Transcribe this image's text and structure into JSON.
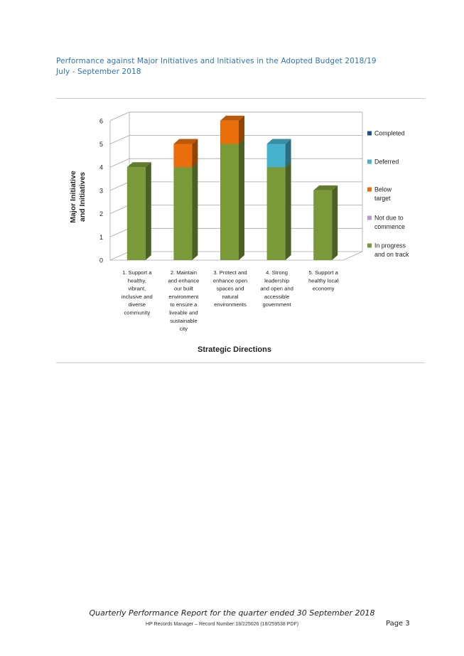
{
  "header": {
    "line1": "Performance against Major Initiatives and Initiatives in the Adopted Budget 2018/19",
    "line2": "July - September 2018"
  },
  "chart_data": {
    "type": "bar",
    "stacked": true,
    "three_d": true,
    "categories": [
      [
        "1. Support a",
        "healthy,",
        "vibrant,",
        "inclusive and",
        "diverse",
        "community"
      ],
      [
        "2. Maintain",
        "and enhance",
        "our built",
        "environment",
        "to ensure a",
        "liveable and",
        "sustainable",
        "city"
      ],
      [
        "3. Protect and",
        "enhance open",
        "spaces and",
        "natural",
        "environments"
      ],
      [
        "4. Strong",
        "leadership",
        "and open and",
        "accessible",
        "government"
      ],
      [
        "5. Support a",
        "healthy local",
        "economy"
      ]
    ],
    "series": [
      {
        "name": [
          "In progress",
          "and on track"
        ],
        "color": "#7a9a3a",
        "values": [
          4,
          4,
          5,
          4,
          3
        ]
      },
      {
        "name": [
          "Not due to",
          "commence"
        ],
        "color": "#b79cc9",
        "values": [
          0,
          0,
          0,
          0,
          0
        ]
      },
      {
        "name": [
          "Below",
          "target"
        ],
        "color": "#e96f0c",
        "values": [
          0,
          1,
          1,
          0,
          0
        ]
      },
      {
        "name": [
          "Deferred"
        ],
        "color": "#46b2cc",
        "values": [
          0,
          0,
          0,
          1,
          0
        ]
      },
      {
        "name": [
          "Completed"
        ],
        "color": "#1f4e8c",
        "values": [
          0,
          0,
          0,
          0,
          0
        ]
      }
    ],
    "y_ticks": [
      "0",
      "1",
      "2",
      "3",
      "4",
      "5",
      "6"
    ],
    "ylim": [
      0,
      6
    ],
    "ylabel": [
      "Major Initiative",
      "and Initiatives"
    ],
    "xlabel": "Strategic Directions",
    "legend_position": "right",
    "grid": true
  },
  "footer": {
    "report": "Quarterly Performance Report for the quarter ended 30 September 2018",
    "record": "HP Records Manager – Record Number:18/225026 (18/259538 PDF)",
    "page": "Page 3"
  }
}
